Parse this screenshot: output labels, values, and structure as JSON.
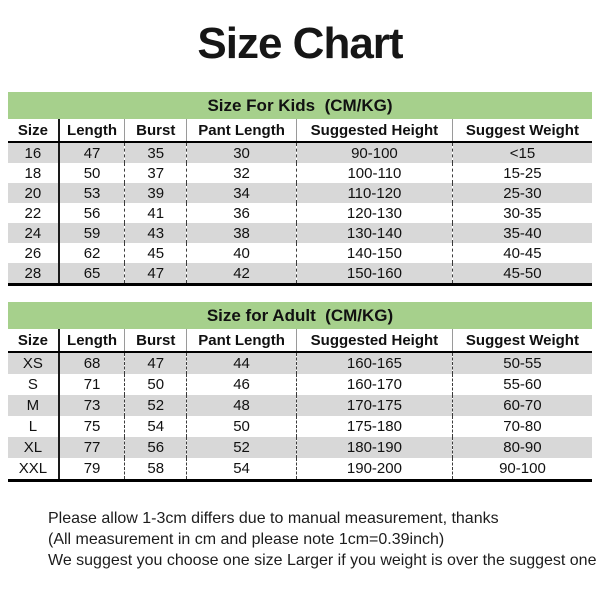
{
  "title": "Size Chart",
  "colors": {
    "banner_green": "#a6d08c",
    "row_gray": "#d8d8d8",
    "border_black": "#000000"
  },
  "tables": [
    {
      "caption": "Size For Kids  (CM/KG)",
      "headers": [
        "Size",
        "Length",
        "Burst",
        "Pant Length",
        "Suggested Height",
        "Suggest Weight"
      ],
      "rows": [
        [
          "16",
          "47",
          "35",
          "30",
          "90-100",
          "<15"
        ],
        [
          "18",
          "50",
          "37",
          "32",
          "100-110",
          "15-25"
        ],
        [
          "20",
          "53",
          "39",
          "34",
          "110-120",
          "25-30"
        ],
        [
          "22",
          "56",
          "41",
          "36",
          "120-130",
          "30-35"
        ],
        [
          "24",
          "59",
          "43",
          "38",
          "130-140",
          "35-40"
        ],
        [
          "26",
          "62",
          "45",
          "40",
          "140-150",
          "40-45"
        ],
        [
          "28",
          "65",
          "47",
          "42",
          "150-160",
          "45-50"
        ]
      ]
    },
    {
      "caption": "Size for Adult  (CM/KG)",
      "headers": [
        "Size",
        "Length",
        "Burst",
        "Pant Length",
        "Suggested Height",
        "Suggest Weight"
      ],
      "rows": [
        [
          "XS",
          "68",
          "47",
          "44",
          "160-165",
          "50-55"
        ],
        [
          "S",
          "71",
          "50",
          "46",
          "160-170",
          "55-60"
        ],
        [
          "M",
          "73",
          "52",
          "48",
          "170-175",
          "60-70"
        ],
        [
          "L",
          "75",
          "54",
          "50",
          "175-180",
          "70-80"
        ],
        [
          "XL",
          "77",
          "56",
          "52",
          "180-190",
          "80-90"
        ],
        [
          "XXL",
          "79",
          "58",
          "54",
          "190-200",
          "90-100"
        ]
      ]
    }
  ],
  "notes": [
    "Please allow 1-3cm differs due to manual measurement, thanks",
    "(All measurement in cm and please note 1cm=0.39inch)",
    "We suggest you choose one size Larger if you weight is over the suggest one"
  ]
}
